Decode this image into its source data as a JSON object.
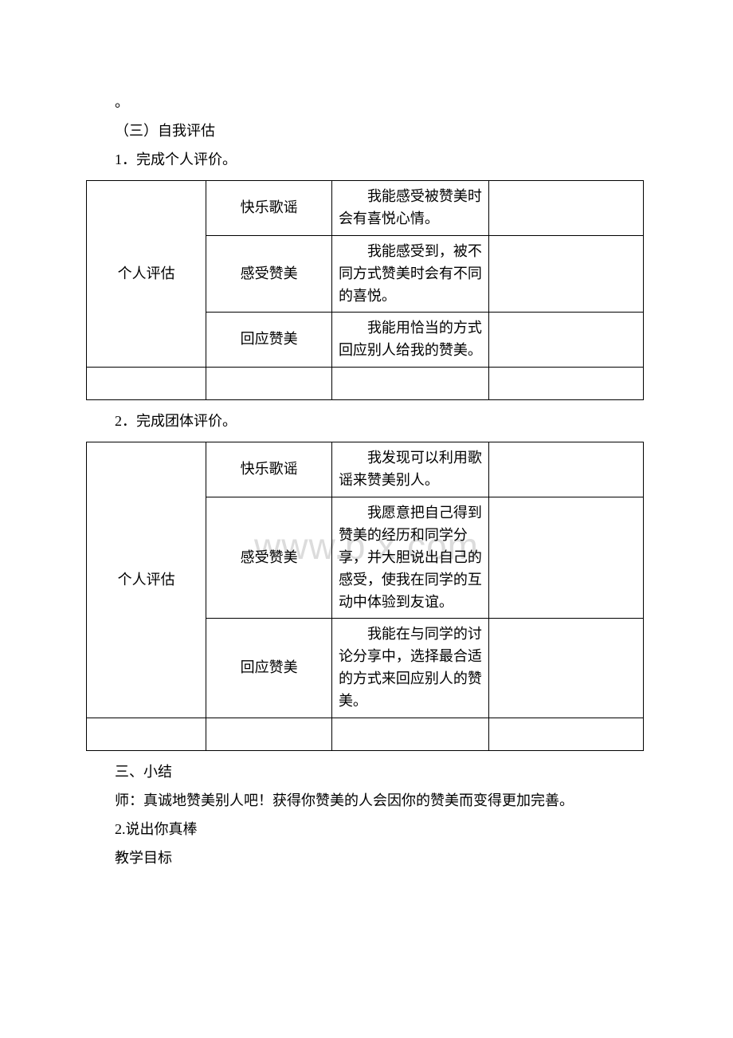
{
  "watermark": "www.b    x.com",
  "intro": {
    "dot": "。",
    "heading_self_eval": "（三）自我评估",
    "p1": "1．完成个人评价。",
    "p2": "2．完成团体评价。"
  },
  "table1": {
    "rowlabel": "个人评估",
    "rows": [
      {
        "c2": "快乐歌谣",
        "c3": "我能感受被赞美时会有喜悦心情。"
      },
      {
        "c2": "感受赞美",
        "c3": "我能感受到，被不同方式赞美时会有不同的喜悦。"
      },
      {
        "c2": "回应赞美",
        "c3": "我能用恰当的方式回应别人给我的赞美。"
      }
    ]
  },
  "table2": {
    "rowlabel": "个人评估",
    "rows": [
      {
        "c2": "快乐歌谣",
        "c3": "我发现可以利用歌谣来赞美别人。"
      },
      {
        "c2": "感受赞美",
        "c3": "我愿意把自己得到赞美的经历和同学分享，并大胆说出自己的感受，使我在同学的互动中体验到友谊。"
      },
      {
        "c2": "回应赞美",
        "c3": "我能在与同学的讨论分享中，选择最合适的方式来回应别人的赞美。"
      }
    ]
  },
  "outro": {
    "h_summary": "三、小结",
    "teacher_line": "师：真诚地赞美别人吧！获得你赞美的人会因你的赞美而变得更加完善。",
    "p_say": "2.说出你真棒",
    "p_goal": "教学目标"
  }
}
